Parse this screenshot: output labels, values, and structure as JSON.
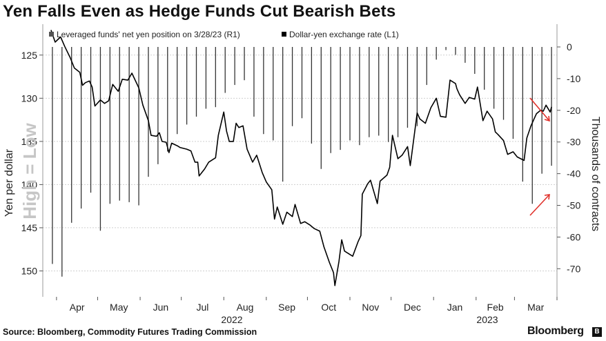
{
  "title": "Yen Falls Even as Hedge Funds Cut Bearish Bets",
  "source": "Source: Bloomberg, Commodity Futures Trading Commission",
  "brand": "Bloomberg",
  "brand_icon_text": "B",
  "chart_data": {
    "type": "line+bar",
    "legend": [
      "Leveraged funds' net yen position on 3/28/23 (R1)",
      "Dollar-yen exchange rate (L1)"
    ],
    "left_axis": {
      "label": "Yen per dollar",
      "ticks": [
        125,
        130,
        135,
        140,
        145,
        150
      ],
      "range": [
        121.5,
        153
      ],
      "inverted": true,
      "annotation": "High = Low"
    },
    "right_axis": {
      "label": "Thousands of contracts",
      "ticks": [
        "0",
        "-10",
        "-20",
        "-30",
        "-40",
        "-50",
        "-60",
        "-70"
      ],
      "range": [
        0,
        -78
      ]
    },
    "x_months": [
      "Apr",
      "May",
      "Jun",
      "Jul",
      "Aug",
      "Sep",
      "Oct",
      "Nov",
      "Dec",
      "Jan",
      "Feb",
      "Mar"
    ],
    "x_years": [
      "2022",
      "2023"
    ],
    "grid": true,
    "colors": {
      "line": "#000000",
      "bars": "#333333",
      "grid": "#cfcfcf",
      "arrow": "#e0302a",
      "watermark": "#c6c6c6"
    },
    "dollar_yen": [
      [
        "2022-03-28",
        122.1
      ],
      [
        "2022-03-31",
        123.5
      ],
      [
        "2022-04-04",
        122.9
      ],
      [
        "2022-04-07",
        124.0
      ],
      [
        "2022-04-11",
        125.3
      ],
      [
        "2022-04-14",
        126.5
      ],
      [
        "2022-04-18",
        127.0
      ],
      [
        "2022-04-20",
        128.5
      ],
      [
        "2022-04-22",
        128.2
      ],
      [
        "2022-04-25",
        128.0
      ],
      [
        "2022-04-27",
        128.7
      ],
      [
        "2022-04-29",
        130.9
      ],
      [
        "2022-05-03",
        130.2
      ],
      [
        "2022-05-06",
        130.6
      ],
      [
        "2022-05-09",
        130.3
      ],
      [
        "2022-05-12",
        128.4
      ],
      [
        "2022-05-16",
        129.2
      ],
      [
        "2022-05-19",
        127.8
      ],
      [
        "2022-05-23",
        127.9
      ],
      [
        "2022-05-26",
        127.1
      ],
      [
        "2022-05-31",
        128.8
      ],
      [
        "2022-06-03",
        130.8
      ],
      [
        "2022-06-07",
        132.6
      ],
      [
        "2022-06-09",
        134.3
      ],
      [
        "2022-06-13",
        134.4
      ],
      [
        "2022-06-15",
        134.0
      ],
      [
        "2022-06-17",
        135.0
      ],
      [
        "2022-06-20",
        135.1
      ],
      [
        "2022-06-22",
        136.3
      ],
      [
        "2022-06-24",
        135.2
      ],
      [
        "2022-06-28",
        135.5
      ],
      [
        "2022-06-30",
        135.7
      ],
      [
        "2022-07-05",
        135.9
      ],
      [
        "2022-07-08",
        136.1
      ],
      [
        "2022-07-11",
        137.4
      ],
      [
        "2022-07-13",
        137.4
      ],
      [
        "2022-07-14",
        139.0
      ],
      [
        "2022-07-18",
        138.2
      ],
      [
        "2022-07-21",
        137.4
      ],
      [
        "2022-07-26",
        136.9
      ],
      [
        "2022-07-28",
        134.3
      ],
      [
        "2022-08-01",
        131.6
      ],
      [
        "2022-08-03",
        133.8
      ],
      [
        "2022-08-05",
        135.0
      ],
      [
        "2022-08-08",
        135.0
      ],
      [
        "2022-08-10",
        132.9
      ],
      [
        "2022-08-12",
        133.4
      ],
      [
        "2022-08-15",
        133.2
      ],
      [
        "2022-08-18",
        135.9
      ],
      [
        "2022-08-22",
        137.4
      ],
      [
        "2022-08-25",
        136.6
      ],
      [
        "2022-08-29",
        138.6
      ],
      [
        "2022-09-01",
        139.7
      ],
      [
        "2022-09-05",
        140.6
      ],
      [
        "2022-09-07",
        144.0
      ],
      [
        "2022-09-09",
        142.6
      ],
      [
        "2022-09-13",
        144.6
      ],
      [
        "2022-09-16",
        143.2
      ],
      [
        "2022-09-20",
        143.7
      ],
      [
        "2022-09-22",
        142.3
      ],
      [
        "2022-09-26",
        144.5
      ],
      [
        "2022-09-29",
        144.3
      ],
      [
        "2022-10-03",
        144.7
      ],
      [
        "2022-10-06",
        145.1
      ],
      [
        "2022-10-10",
        145.4
      ],
      [
        "2022-10-13",
        147.2
      ],
      [
        "2022-10-17",
        149.0
      ],
      [
        "2022-10-20",
        150.2
      ],
      [
        "2022-10-21",
        151.7
      ],
      [
        "2022-10-24",
        148.9
      ],
      [
        "2022-10-26",
        146.4
      ],
      [
        "2022-10-28",
        147.7
      ],
      [
        "2022-11-01",
        148.1
      ],
      [
        "2022-11-03",
        148.3
      ],
      [
        "2022-11-07",
        146.6
      ],
      [
        "2022-11-09",
        145.9
      ],
      [
        "2022-11-10",
        141.1
      ],
      [
        "2022-11-14",
        139.9
      ],
      [
        "2022-11-16",
        139.5
      ],
      [
        "2022-11-21",
        142.2
      ],
      [
        "2022-11-23",
        139.6
      ],
      [
        "2022-11-28",
        138.9
      ],
      [
        "2022-11-30",
        138.0
      ],
      [
        "2022-12-02",
        134.3
      ],
      [
        "2022-12-06",
        137.0
      ],
      [
        "2022-12-09",
        136.6
      ],
      [
        "2022-12-13",
        135.6
      ],
      [
        "2022-12-15",
        137.8
      ],
      [
        "2022-12-16",
        136.6
      ],
      [
        "2022-12-20",
        131.7
      ],
      [
        "2022-12-22",
        132.4
      ],
      [
        "2022-12-26",
        132.9
      ],
      [
        "2022-12-30",
        131.1
      ],
      [
        "2023-01-03",
        130.0
      ],
      [
        "2023-01-06",
        132.1
      ],
      [
        "2023-01-10",
        132.2
      ],
      [
        "2023-01-13",
        127.9
      ],
      [
        "2023-01-17",
        128.3
      ],
      [
        "2023-01-18",
        128.9
      ],
      [
        "2023-01-20",
        129.6
      ],
      [
        "2023-01-24",
        130.6
      ],
      [
        "2023-01-27",
        129.9
      ],
      [
        "2023-01-31",
        130.1
      ],
      [
        "2023-02-02",
        128.7
      ],
      [
        "2023-02-06",
        132.6
      ],
      [
        "2023-02-09",
        131.5
      ],
      [
        "2023-02-13",
        132.4
      ],
      [
        "2023-02-15",
        133.9
      ],
      [
        "2023-02-17",
        134.2
      ],
      [
        "2023-02-21",
        134.9
      ],
      [
        "2023-02-24",
        136.5
      ],
      [
        "2023-02-28",
        136.2
      ],
      [
        "2023-03-03",
        136.8
      ],
      [
        "2023-03-08",
        137.2
      ],
      [
        "2023-03-10",
        134.6
      ],
      [
        "2023-03-13",
        133.2
      ],
      [
        "2023-03-15",
        132.5
      ],
      [
        "2023-03-17",
        131.8
      ],
      [
        "2023-03-20",
        131.4
      ],
      [
        "2023-03-22",
        131.5
      ],
      [
        "2023-03-24",
        130.8
      ],
      [
        "2023-03-27",
        131.6
      ],
      [
        "2023-03-28",
        131.0
      ]
    ],
    "net_yen_position_thousands": [
      [
        "2022-03-29",
        -68.5
      ],
      [
        "2022-04-05",
        -72.5
      ],
      [
        "2022-04-12",
        -55.5
      ],
      [
        "2022-04-19",
        -51.0
      ],
      [
        "2022-04-26",
        -46.0
      ],
      [
        "2022-05-03",
        -58.0
      ],
      [
        "2022-05-10",
        -49.5
      ],
      [
        "2022-05-17",
        -48.5
      ],
      [
        "2022-05-24",
        -49.0
      ],
      [
        "2022-05-31",
        -50.0
      ],
      [
        "2022-06-07",
        -41.0
      ],
      [
        "2022-06-14",
        -37.0
      ],
      [
        "2022-06-21",
        -33.0
      ],
      [
        "2022-06-28",
        -27.5
      ],
      [
        "2022-07-05",
        -24.5
      ],
      [
        "2022-07-12",
        -22.0
      ],
      [
        "2022-07-19",
        -19.5
      ],
      [
        "2022-07-26",
        -19.0
      ],
      [
        "2022-08-02",
        -14.5
      ],
      [
        "2022-08-09",
        -12.0
      ],
      [
        "2022-08-16",
        -10.5
      ],
      [
        "2022-08-23",
        -22.0
      ],
      [
        "2022-08-30",
        -27.5
      ],
      [
        "2022-09-06",
        -29.5
      ],
      [
        "2022-09-13",
        -42.5
      ],
      [
        "2022-09-20",
        -25.0
      ],
      [
        "2022-09-27",
        -22.5
      ],
      [
        "2022-10-04",
        -30.5
      ],
      [
        "2022-10-11",
        -38.5
      ],
      [
        "2022-10-18",
        -33.5
      ],
      [
        "2022-10-25",
        -32.5
      ],
      [
        "2022-11-01",
        -29.5
      ],
      [
        "2022-11-08",
        -31.0
      ],
      [
        "2022-11-15",
        -28.5
      ],
      [
        "2022-11-22",
        -28.0
      ],
      [
        "2022-11-29",
        -30.0
      ],
      [
        "2022-12-06",
        -28.5
      ],
      [
        "2022-12-13",
        -25.5
      ],
      [
        "2022-12-20",
        -25.0
      ],
      [
        "2022-12-27",
        -12.0
      ],
      [
        "2023-01-03",
        -4.0
      ],
      [
        "2023-01-10",
        -1.0
      ],
      [
        "2023-01-17",
        -2.5
      ],
      [
        "2023-01-24",
        -5.0
      ],
      [
        "2023-01-31",
        -8.5
      ],
      [
        "2023-02-07",
        -13.5
      ],
      [
        "2023-02-14",
        -19.5
      ],
      [
        "2023-02-21",
        -23.0
      ],
      [
        "2023-02-28",
        -29.0
      ],
      [
        "2023-03-07",
        -42.5
      ],
      [
        "2023-03-14",
        -49.5
      ],
      [
        "2023-03-21",
        -40.0
      ],
      [
        "2023-03-28",
        -37.5
      ]
    ]
  }
}
